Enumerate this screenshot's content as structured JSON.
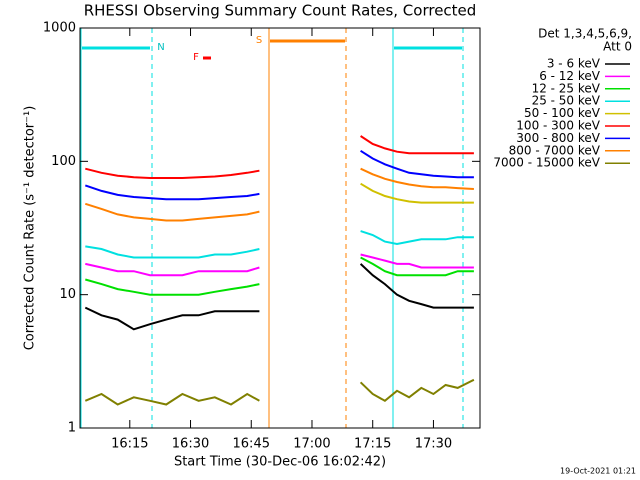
{
  "chart_data": {
    "type": "line",
    "title": "RHESSI Observing Summary Count Rates, Corrected",
    "xlabel": "Start Time (30-Dec-06 16:02:42)",
    "ylabel": "Corrected Count Rate (s⁻¹ detector⁻¹)",
    "legend_title": [
      "Det 1,3,4,5,6,9,",
      "Att 0"
    ],
    "footer": "19-Oct-2021 01:21",
    "annotations": [
      "N",
      "F",
      "S"
    ],
    "log_y": true,
    "legend": "right",
    "x": [
      "16:04",
      "16:08",
      "16:12",
      "16:16",
      "16:20",
      "16:24",
      "16:28",
      "16:32",
      "16:36",
      "16:40",
      "16:44",
      "16:47",
      "17:00",
      "17:12",
      "17:15",
      "17:18",
      "17:21",
      "17:24",
      "17:27",
      "17:30",
      "17:33",
      "17:36",
      "17:40"
    ],
    "xlim": [
      "16:02:42",
      "17:41:30"
    ],
    "xticks": [
      "16:15",
      "16:30",
      "16:45",
      "17:00",
      "17:15",
      "17:30"
    ],
    "ylim": [
      1,
      1000
    ],
    "yticks": [
      1,
      10,
      100,
      1000
    ],
    "series": [
      {
        "name": "3 - 6 keV",
        "color": "#000000",
        "values": [
          8,
          7,
          6.5,
          5.5,
          6,
          6.5,
          7,
          7,
          7.5,
          7.5,
          7.5,
          7.5,
          null,
          17,
          14,
          12,
          10,
          9,
          8.5,
          8,
          8,
          8,
          8
        ]
      },
      {
        "name": "6 - 12 keV",
        "color": "#ff00ff",
        "values": [
          17,
          16,
          15,
          15,
          14,
          14,
          14,
          15,
          15,
          15,
          15,
          16,
          null,
          20,
          19,
          18,
          17,
          17,
          16,
          16,
          16,
          16,
          16
        ]
      },
      {
        "name": "12 - 25 keV",
        "color": "#00e000",
        "values": [
          13,
          12,
          11,
          10.5,
          10,
          10,
          10,
          10,
          10.5,
          11,
          11.5,
          12,
          null,
          19,
          17,
          15,
          14,
          14,
          14,
          14,
          14,
          15,
          15
        ]
      },
      {
        "name": "25 - 50 keV",
        "color": "#00e0e0",
        "values": [
          23,
          22,
          20,
          19,
          19,
          19,
          19,
          19,
          20,
          20,
          21,
          22,
          null,
          30,
          28,
          25,
          24,
          25,
          26,
          26,
          26,
          27,
          27
        ]
      },
      {
        "name": "50 - 100 keV",
        "color": "#d0c000",
        "values": [
          null,
          null,
          null,
          null,
          null,
          null,
          null,
          null,
          null,
          null,
          null,
          null,
          null,
          68,
          60,
          55,
          52,
          50,
          49,
          49,
          49,
          49,
          49
        ]
      },
      {
        "name": "100 - 300 keV",
        "color": "#ff0000",
        "values": [
          88,
          82,
          78,
          76,
          75,
          75,
          75,
          76,
          77,
          79,
          82,
          85,
          null,
          155,
          135,
          125,
          118,
          115,
          115,
          115,
          115,
          115,
          115
        ]
      },
      {
        "name": "300 - 800 keV",
        "color": "#0000ff",
        "values": [
          66,
          60,
          56,
          54,
          53,
          52,
          52,
          52,
          53,
          54,
          55,
          57,
          null,
          120,
          105,
          95,
          88,
          82,
          80,
          78,
          77,
          76,
          76
        ]
      },
      {
        "name": "800 - 7000 keV",
        "color": "#ff8000",
        "values": [
          48,
          44,
          40,
          38,
          37,
          36,
          36,
          37,
          38,
          39,
          40,
          42,
          null,
          88,
          80,
          74,
          70,
          67,
          65,
          64,
          64,
          63,
          62
        ]
      },
      {
        "name": "7000 - 15000 keV",
        "color": "#808000",
        "values": [
          1.6,
          1.8,
          1.5,
          1.7,
          1.6,
          1.5,
          1.8,
          1.6,
          1.7,
          1.5,
          1.8,
          1.6,
          null,
          2.2,
          1.8,
          1.6,
          1.9,
          1.7,
          2.0,
          1.8,
          2.1,
          2.0,
          2.3
        ]
      }
    ]
  }
}
